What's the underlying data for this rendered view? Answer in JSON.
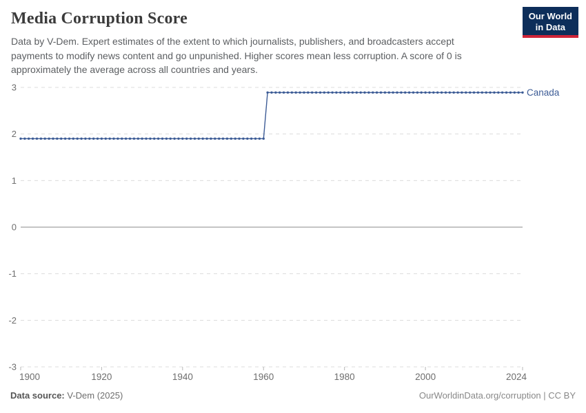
{
  "header": {
    "title": "Media Corruption Score",
    "subtitle_lines": [
      "Data by V-Dem. Expert estimates of the extent to which journalists, publishers, and broadcasters accept",
      "payments to modify news content and go unpunished. Higher scores mean less corruption. A score of 0 is",
      "approximately the average across all countries and years."
    ],
    "logo": {
      "line1": "Our World",
      "line2": "in Data"
    }
  },
  "chart_data": {
    "type": "line",
    "title": "Media Corruption Score",
    "series": [
      {
        "name": "Canada",
        "color": "#3d5c96",
        "step_points": [
          {
            "year": 1900,
            "value": 1.9
          },
          {
            "year": 1960,
            "value": 1.9
          },
          {
            "year": 1961,
            "value": 2.89
          },
          {
            "year": 2024,
            "value": 2.89
          }
        ],
        "marker": "dot-per-year"
      }
    ],
    "xlim": [
      1900,
      2024
    ],
    "ylim": [
      -3,
      3
    ],
    "x_ticks": [
      1900,
      1920,
      1940,
      1960,
      1980,
      2000,
      2024
    ],
    "x_tick_labels": [
      "1900",
      "1920",
      "1940",
      "1960",
      "1980",
      "2000",
      "2024"
    ],
    "y_ticks": [
      3,
      2,
      1,
      0,
      -1,
      -2,
      -3
    ],
    "y_tick_labels": [
      "3",
      "2",
      "1",
      "0",
      "-1",
      "-2",
      "-3"
    ],
    "grid": "horizontal dashed lines, solid line at zero",
    "legend_position": "end-of-line label"
  },
  "footer": {
    "source_label": "Data source:",
    "source_value": "V-Dem (2025)",
    "credit": "OurWorldinData.org/corruption | CC BY"
  },
  "colors": {
    "series_canada": "#3d5c96",
    "logo_bg": "#0d2e5a",
    "logo_stripe": "#cf2438",
    "gridline": "#dcdcdc",
    "zero_line": "#a0a0a0",
    "tick_mark": "#b8b8b8",
    "axis_label": "#6e6e6e",
    "title_text": "#3b3b3b",
    "subtitle_text": "#5b5e61"
  }
}
